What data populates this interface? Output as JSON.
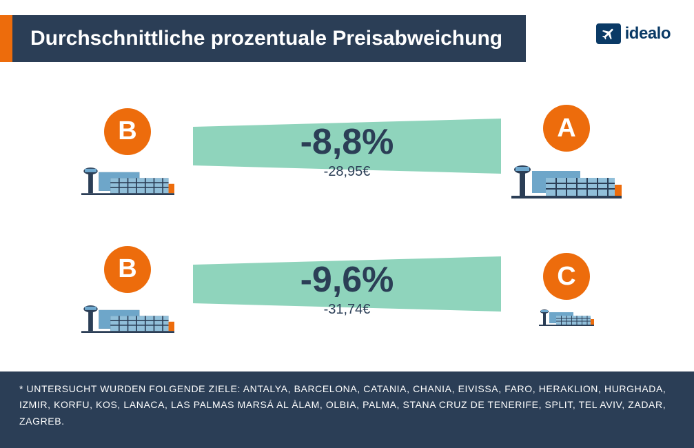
{
  "colors": {
    "accent": "#ED6C0C",
    "header_bg": "#2B3E56",
    "wedge_fill": "#8FD4BC",
    "logo_bg": "#0A3A66"
  },
  "header": {
    "title": "Durchschnittliche prozentuale Preisabweichung"
  },
  "logo": {
    "text": "idealo"
  },
  "comparisons": [
    {
      "left": {
        "letter": "B",
        "airport_size": "medium"
      },
      "right": {
        "letter": "A",
        "airport_size": "large"
      },
      "percent": "-8,8%",
      "absolute": "-28,95€",
      "wedge": {
        "left_half_height": 0.7,
        "right_half_height": 1.0
      }
    },
    {
      "left": {
        "letter": "B",
        "airport_size": "medium"
      },
      "right": {
        "letter": "C",
        "airport_size": "xsmall"
      },
      "percent": "-9,6%",
      "absolute": "-31,74€",
      "wedge": {
        "left_half_height": 0.7,
        "right_half_height": 1.0
      }
    }
  ],
  "footer": {
    "text": "* UNTERSUCHT WURDEN FOLGENDE ZIELE: ANTALYA, BARCELONA, CATANIA, CHANIA, EIVISSA, FARO, HERAKLION, HURGHADA, IZMIR, KORFU, KOS, LANACA, LAS PALMAS MARSÁ AL ÀLAM, OLBIA, PALMA, STANA CRUZ DE TENERIFE, SPLIT, TEL AVIV, ZADAR, ZAGREB."
  }
}
